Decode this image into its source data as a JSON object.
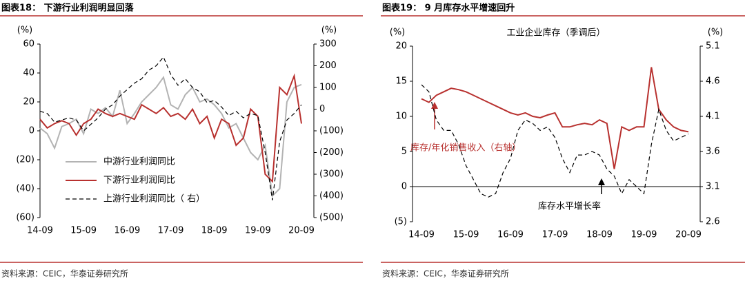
{
  "chart_data": [
    {
      "type": "line",
      "title": "图表18： 下游行业利润明显回落",
      "y_unit": "(%)",
      "y2_unit": "(%)",
      "categories": [
        "14-09",
        null,
        null,
        null,
        null,
        null,
        "15-09",
        null,
        null,
        null,
        null,
        null,
        "16-09",
        null,
        null,
        null,
        null,
        null,
        "17-09",
        null,
        null,
        null,
        null,
        null,
        "18-09",
        null,
        null,
        null,
        null,
        null,
        "19-09",
        null,
        null,
        null,
        null,
        null,
        "20-09"
      ],
      "series": [
        {
          "name": "中游行业利润同比",
          "color": "#b3b3b3",
          "style": "solid",
          "axis": "y",
          "values": [
            2,
            -2,
            -12,
            3,
            5,
            8,
            -2,
            15,
            12,
            16,
            10,
            28,
            5,
            12,
            20,
            25,
            30,
            37,
            18,
            15,
            25,
            30,
            20,
            22,
            18,
            12,
            2,
            5,
            -5,
            -15,
            -20,
            -10,
            -45,
            -40,
            20,
            30,
            32
          ]
        },
        {
          "name": "下游行业利润同比",
          "color": "#b8312f",
          "style": "solid",
          "axis": "y",
          "values": [
            8,
            2,
            5,
            7,
            5,
            -3,
            5,
            8,
            15,
            12,
            10,
            12,
            10,
            8,
            18,
            15,
            12,
            16,
            10,
            12,
            8,
            15,
            5,
            10,
            -5,
            8,
            5,
            -10,
            -5,
            15,
            10,
            -30,
            -35,
            30,
            25,
            38,
            5
          ]
        },
        {
          "name": "上游行业利润同比（ 右）",
          "color": "#000000",
          "style": "dashed",
          "axis": "y2",
          "values": [
            -10,
            -20,
            -60,
            -50,
            -40,
            -50,
            -100,
            -70,
            -40,
            0,
            20,
            60,
            90,
            120,
            140,
            180,
            200,
            240,
            160,
            110,
            140,
            100,
            80,
            30,
            40,
            10,
            -30,
            -10,
            -40,
            -20,
            -30,
            -200,
            -420,
            -150,
            -50,
            -20,
            20
          ]
        }
      ],
      "ylim": [
        -60,
        60
      ],
      "yticks": [
        60,
        40,
        20,
        0,
        {
          "value": -20,
          "label": "(20)"
        },
        {
          "value": -40,
          "label": "(40)"
        },
        {
          "value": -60,
          "label": "(60)"
        }
      ],
      "y2lim": [
        -500,
        300
      ],
      "y2ticks": [
        300,
        200,
        100,
        0,
        {
          "value": -100,
          "label": "(100)"
        },
        {
          "value": -200,
          "label": "(200)"
        },
        {
          "value": -300,
          "label": "(300)"
        },
        {
          "value": -400,
          "label": "(400)"
        },
        {
          "value": -500,
          "label": "(500)"
        }
      ],
      "zero_line": false,
      "legend": "lower-left",
      "source": "资料来源：CEIC，华泰证券研究所"
    },
    {
      "type": "line",
      "title": "图表19： 9 月库存水平增速回升",
      "subtitle": "工业企业库存（季调后）",
      "y_unit": "(%)",
      "y2_unit": "(%)",
      "categories": [
        "14-09",
        null,
        null,
        null,
        null,
        null,
        "15-09",
        null,
        null,
        null,
        null,
        null,
        "16-09",
        null,
        null,
        null,
        null,
        null,
        "17-09",
        null,
        null,
        null,
        null,
        null,
        "18-09",
        null,
        null,
        null,
        null,
        null,
        "19-09",
        null,
        null,
        null,
        null,
        null,
        "20-09"
      ],
      "series": [
        {
          "name": "库存/年化销售收入（右轴）",
          "color": "#b8312f",
          "style": "solid",
          "axis": "y2",
          "values": [
            4.35,
            4.3,
            4.4,
            4.45,
            4.5,
            4.48,
            4.45,
            4.4,
            4.35,
            4.3,
            4.25,
            4.2,
            4.15,
            4.12,
            4.15,
            4.1,
            4.08,
            4.12,
            4.15,
            3.95,
            3.95,
            3.98,
            4.0,
            3.98,
            4.05,
            4.0,
            3.35,
            3.95,
            3.9,
            3.95,
            3.95,
            4.8,
            4.2,
            4.05,
            3.95,
            3.9,
            3.88
          ]
        },
        {
          "name": "库存水平增长率",
          "color": "#000000",
          "style": "dashed",
          "axis": "y",
          "values": [
            14.5,
            13.5,
            9.5,
            8,
            8,
            6,
            3,
            1,
            -1,
            -1.5,
            -1,
            2,
            4,
            8,
            9.5,
            9,
            8,
            8.5,
            7,
            4,
            2,
            4.5,
            4.5,
            5,
            4.5,
            2.5,
            1.5,
            -1,
            1,
            0,
            -1,
            6,
            11,
            8,
            6.5,
            7,
            7.5
          ]
        }
      ],
      "ylim": [
        -5,
        20
      ],
      "yticks": [
        20,
        15,
        10,
        5,
        0,
        {
          "value": -5,
          "label": "(5)"
        }
      ],
      "y2lim": [
        2.6,
        5.1
      ],
      "y2ticks": [
        5.1,
        4.6,
        4.1,
        3.6,
        3.1,
        2.6
      ],
      "zero_line": true,
      "legend": "annotations",
      "source": "资料来源：CEIC，华泰证券研究所"
    }
  ]
}
